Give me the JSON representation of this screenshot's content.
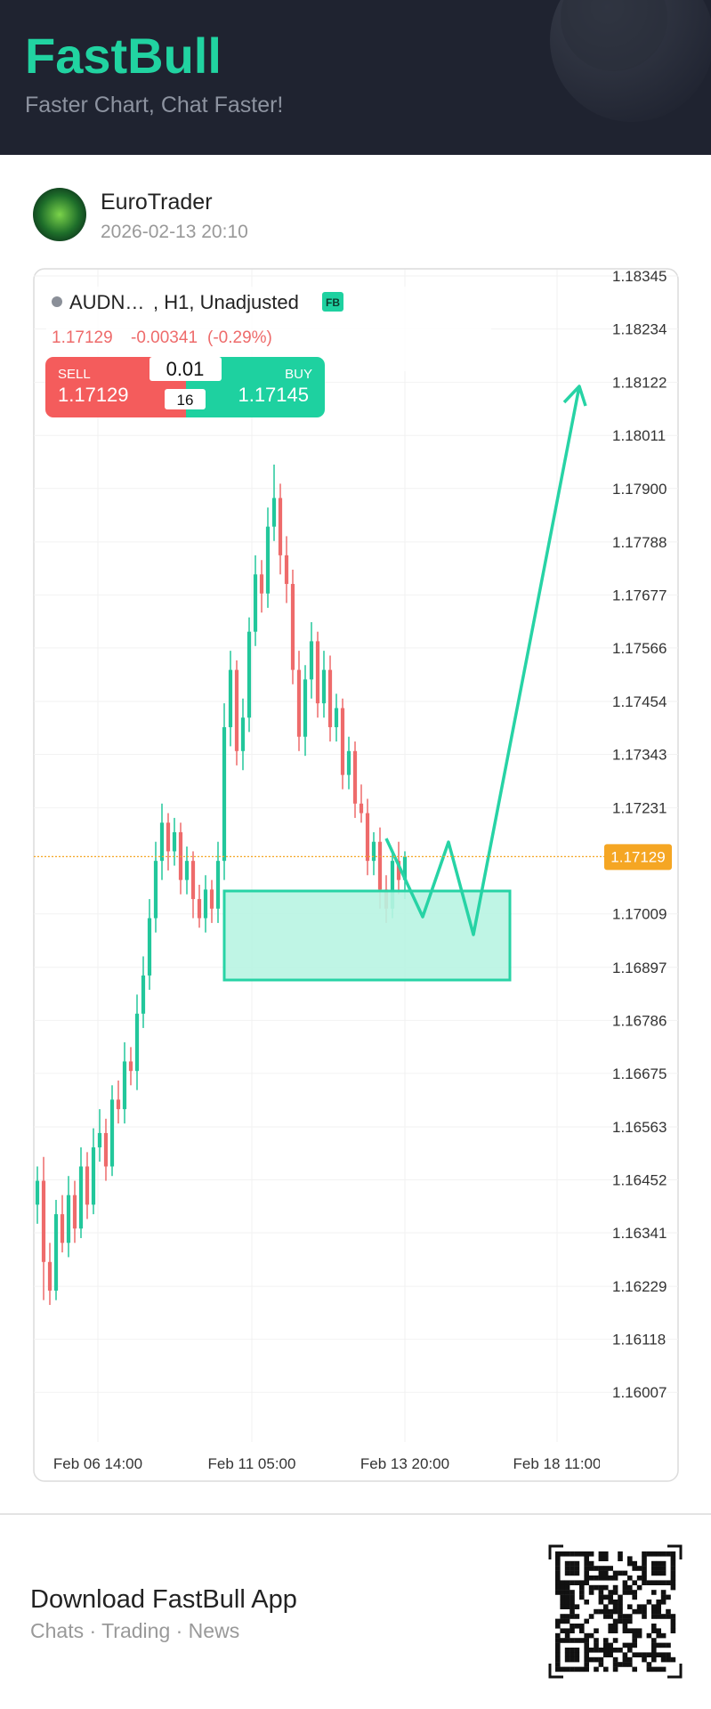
{
  "header": {
    "brand": "FastBull",
    "tagline": "Faster Chart, Chat Faster!"
  },
  "post": {
    "author": "EuroTrader",
    "date": "2026-02-13 20:10"
  },
  "chart_data": {
    "type": "candlestick",
    "symbol": "AUDN…",
    "meta": ", H1, Unadjusted",
    "badge": "FB",
    "change": "-0.00341",
    "change_pct": "(-0.29%)",
    "last": 1.17129,
    "xlabels": [
      "Feb 06 14:00",
      "Feb 11 05:00",
      "Feb 13 20:00",
      "Feb 18 11:00"
    ],
    "ylim": [
      1.15903,
      1.1836
    ],
    "yticks": [
      1.18345,
      1.18234,
      1.18122,
      1.18011,
      {
        "value": 1.179,
        "label": "1.17900"
      },
      1.17788,
      1.17677,
      1.17566,
      1.17454,
      1.17343,
      1.17231,
      1.17009,
      1.16897,
      1.16786,
      1.16675,
      1.16563,
      1.16452,
      1.16341,
      1.16229,
      1.16118,
      1.16007
    ],
    "grid": true,
    "up_color": "#22c79b",
    "down_color": "#ee6b6b",
    "open": [
      1.164,
      1.1645,
      1.1628,
      1.1622,
      1.1638,
      1.1632,
      1.1642,
      1.1635,
      1.1648,
      1.164,
      1.1652,
      1.1655,
      1.1648,
      1.1662,
      1.166,
      1.167,
      1.1668,
      1.168,
      1.1688,
      1.17,
      1.1712,
      1.172,
      1.1714,
      1.1718,
      1.1708,
      1.1712,
      1.1704,
      1.17,
      1.1706,
      1.1702,
      1.1712,
      1.174,
      1.1752,
      1.1735,
      1.1742,
      1.176,
      1.1772,
      1.1768,
      1.1782,
      1.1788,
      1.1776,
      1.177,
      1.1752,
      1.1738,
      1.175,
      1.1758,
      1.1745,
      1.1752,
      1.174,
      1.1744,
      1.173,
      1.1735,
      1.1724,
      1.1722,
      1.1712,
      1.1716,
      1.1706,
      1.1702,
      1.1712,
      1.1708
    ],
    "high": [
      1.1648,
      1.165,
      1.1632,
      1.1641,
      1.1642,
      1.1646,
      1.1645,
      1.1652,
      1.1651,
      1.1656,
      1.166,
      1.1658,
      1.1665,
      1.1666,
      1.1674,
      1.1673,
      1.1684,
      1.1692,
      1.1704,
      1.1716,
      1.1724,
      1.1722,
      1.1721,
      1.172,
      1.1715,
      1.1714,
      1.1707,
      1.1709,
      1.1708,
      1.1716,
      1.1745,
      1.1756,
      1.1754,
      1.1746,
      1.1763,
      1.1776,
      1.1775,
      1.1786,
      1.1795,
      1.1791,
      1.178,
      1.1773,
      1.1756,
      1.1753,
      1.1762,
      1.176,
      1.1756,
      1.1755,
      1.1747,
      1.1746,
      1.1738,
      1.1737,
      1.1728,
      1.1725,
      1.1718,
      1.1719,
      1.1709,
      1.1714,
      1.1716,
      1.1714
    ],
    "low": [
      1.1636,
      1.162,
      1.1619,
      1.162,
      1.163,
      1.1629,
      1.1632,
      1.1633,
      1.1637,
      1.1638,
      1.1649,
      1.1645,
      1.1646,
      1.1657,
      1.1657,
      1.1665,
      1.1664,
      1.1677,
      1.1685,
      1.1697,
      1.1708,
      1.171,
      1.1711,
      1.1705,
      1.1705,
      1.17,
      1.1698,
      1.1697,
      1.1699,
      1.1699,
      1.1708,
      1.1736,
      1.1732,
      1.1731,
      1.1739,
      1.1757,
      1.1764,
      1.1765,
      1.1779,
      1.1772,
      1.1766,
      1.1749,
      1.1735,
      1.1734,
      1.1746,
      1.1742,
      1.1742,
      1.1737,
      1.1737,
      1.1727,
      1.1727,
      1.1721,
      1.172,
      1.1709,
      1.1709,
      1.1702,
      1.1699,
      1.17,
      1.1705,
      1.1704
    ],
    "close": [
      1.1645,
      1.1628,
      1.1622,
      1.1638,
      1.1632,
      1.1642,
      1.1635,
      1.1648,
      1.164,
      1.1652,
      1.1655,
      1.1648,
      1.1662,
      1.166,
      1.167,
      1.1668,
      1.168,
      1.1688,
      1.17,
      1.1712,
      1.172,
      1.1714,
      1.1718,
      1.1708,
      1.1712,
      1.1704,
      1.17,
      1.1706,
      1.1702,
      1.1712,
      1.174,
      1.1752,
      1.1735,
      1.1742,
      1.176,
      1.1772,
      1.1768,
      1.1782,
      1.1788,
      1.1776,
      1.177,
      1.1752,
      1.1738,
      1.175,
      1.1758,
      1.1745,
      1.1752,
      1.174,
      1.1744,
      1.173,
      1.1735,
      1.1724,
      1.1722,
      1.1712,
      1.1716,
      1.1706,
      1.1702,
      1.1712,
      1.1708,
      1.17129
    ]
  },
  "trade": {
    "sell_label": "SELL",
    "sell": "1.17129",
    "buy_label": "BUY",
    "buy": "1.17145",
    "lot": "0.01",
    "spread": "16"
  },
  "footer": {
    "title": "Download FastBull App",
    "subtitle": "Chats · Trading · News"
  }
}
